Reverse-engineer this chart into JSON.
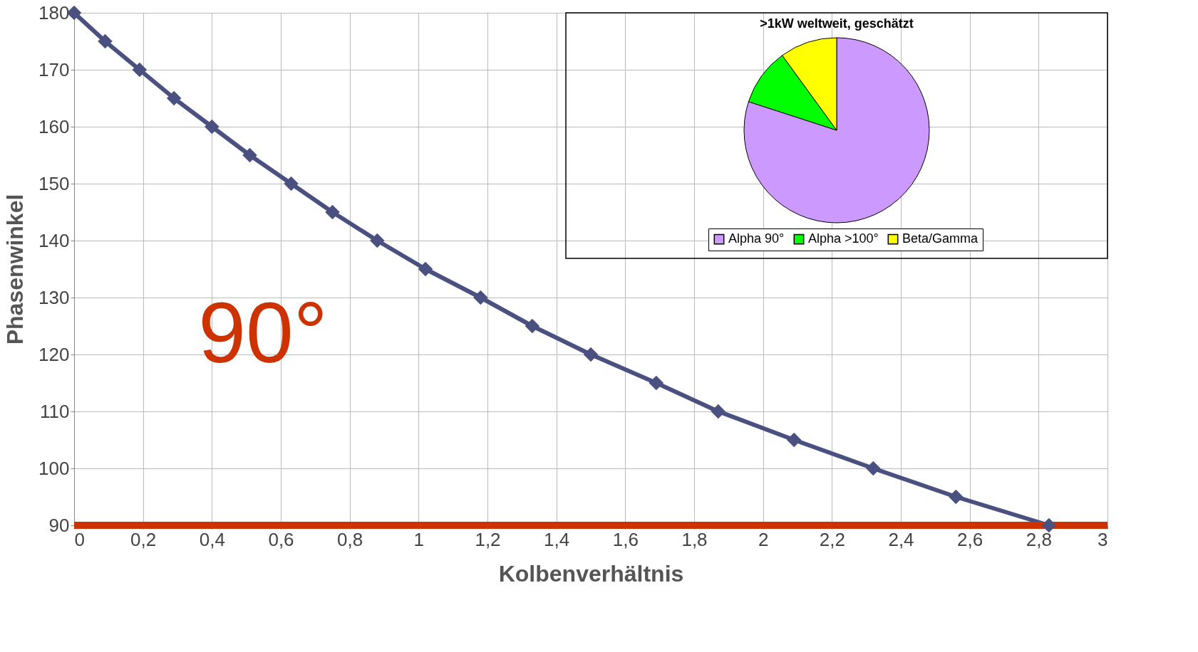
{
  "chart_data": [
    {
      "type": "line",
      "xlabel": "Kolbenverhältnis",
      "ylabel": "Phasenwinkel",
      "x": [
        0,
        0.09,
        0.19,
        0.29,
        0.4,
        0.51,
        0.63,
        0.75,
        0.88,
        1.02,
        1.18,
        1.33,
        1.5,
        1.69,
        1.87,
        2.09,
        2.32,
        2.56,
        2.83
      ],
      "series": [
        {
          "color": "#4a5080",
          "values": [
            180,
            175,
            170,
            165,
            160,
            155,
            150,
            145,
            140,
            135,
            130,
            125,
            120,
            115,
            110,
            105,
            100,
            95,
            90
          ]
        }
      ],
      "xlim": [
        0,
        3
      ],
      "ylim": [
        90,
        180
      ],
      "xticks": [
        0,
        {
          "value": 0.2,
          "label": "0,2"
        },
        {
          "value": 0.4,
          "label": "0,4"
        },
        {
          "value": 0.6,
          "label": "0,6"
        },
        {
          "value": 0.8,
          "label": "0,8"
        },
        1,
        {
          "value": 1.2,
          "label": "1,2"
        },
        {
          "value": 1.4,
          "label": "1,4"
        },
        {
          "value": 1.6,
          "label": "1,6"
        },
        {
          "value": 1.8,
          "label": "1,8"
        },
        2,
        {
          "value": 2.2,
          "label": "2,2"
        },
        {
          "value": 2.4,
          "label": "2,4"
        },
        {
          "value": 2.6,
          "label": "2,6"
        },
        {
          "value": 2.8,
          "label": "2,8"
        },
        3
      ],
      "yticks": [
        90,
        100,
        110,
        120,
        130,
        140,
        150,
        160,
        170,
        180
      ],
      "grid": true,
      "marker": "diamond",
      "line_style": "solid",
      "ref_lines": [
        {
          "axis": "y",
          "value": 90,
          "color": "#cc3300"
        }
      ],
      "annotations": [
        "90°"
      ]
    },
    {
      "type": "pie",
      "title": ">1kW weltweit, geschätzt",
      "categories": [
        "Alpha 90°",
        "Alpha >100°",
        "Beta/Gamma"
      ],
      "values": [
        80,
        10,
        10
      ],
      "colors": [
        "#cc99ff",
        "#00ff00",
        "#ffff00"
      ],
      "legend": "bottom"
    }
  ]
}
